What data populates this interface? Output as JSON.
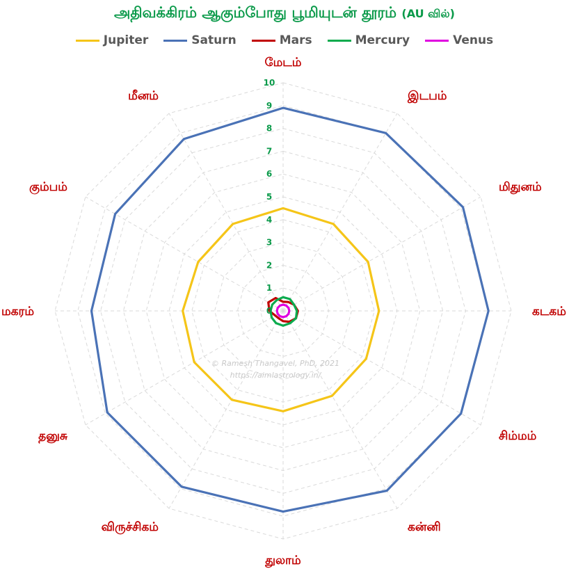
{
  "chart_data": {
    "type": "radar",
    "title": "அதிவக்கிரம் ஆகும்போது பூமியுடன் தூரம்",
    "title_unit": "(AU வில்)",
    "categories": [
      "மேடம்",
      "இடபம்",
      "மிதுனம்",
      "கடகம்",
      "சிம்மம்",
      "கன்னி",
      "துலாம்",
      "விருச்சிகம்",
      "தனுசு",
      "மகரம்",
      "கும்பம்",
      "மீனம்"
    ],
    "rmin": 0,
    "rmax": 10,
    "ticks": [
      0,
      1,
      2,
      3,
      4,
      5,
      6,
      7,
      8,
      9,
      10
    ],
    "grid": true,
    "legend_position": "top",
    "series": [
      {
        "name": "Jupiter",
        "color": "#f5c518",
        "values": [
          4.5,
          4.4,
          4.3,
          4.2,
          4.2,
          4.3,
          4.4,
          4.5,
          4.5,
          4.4,
          4.3,
          4.4
        ]
      },
      {
        "name": "Saturn",
        "color": "#4a72b6",
        "values": [
          8.9,
          9.0,
          9.1,
          9.0,
          9.0,
          9.1,
          8.8,
          8.9,
          8.9,
          8.4,
          8.5,
          8.7
        ]
      },
      {
        "name": "Mars",
        "color": "#c00000",
        "values": [
          0.4,
          0.45,
          0.55,
          0.65,
          0.65,
          0.55,
          0.45,
          0.38,
          0.4,
          0.6,
          0.75,
          0.65
        ]
      },
      {
        "name": "Mercury",
        "color": "#0bab4e",
        "values": [
          0.6,
          0.6,
          0.55,
          0.6,
          0.65,
          0.62,
          0.65,
          0.62,
          0.58,
          0.55,
          0.55,
          0.55
        ]
      },
      {
        "name": "Venus",
        "color": "#e000e0",
        "values": [
          0.27,
          0.27,
          0.27,
          0.27,
          0.27,
          0.27,
          0.27,
          0.27,
          0.27,
          0.27,
          0.27,
          0.27
        ]
      }
    ]
  },
  "watermark": {
    "line1": "© Ramesh Thangavel, PhD, 2021",
    "line2": "https://aimlastrology.in/"
  }
}
